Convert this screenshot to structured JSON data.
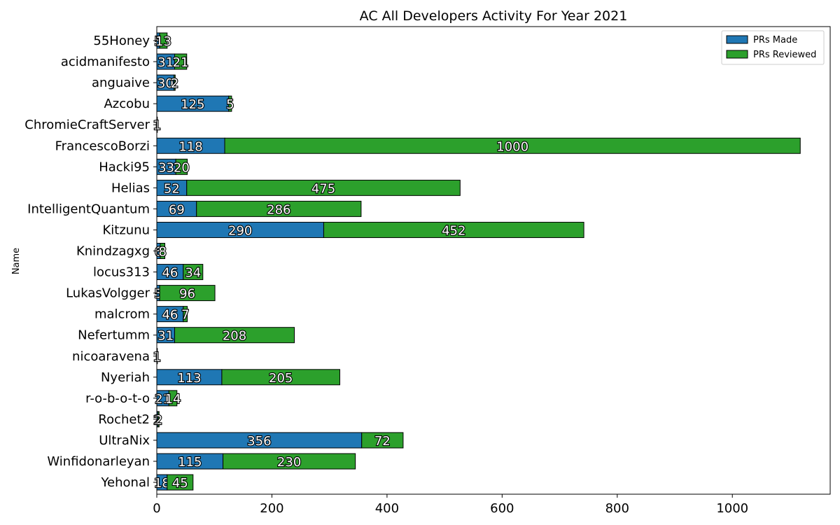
{
  "chart_data": {
    "type": "bar",
    "orientation": "horizontal",
    "stacked": true,
    "title": "AC All Developers Activity For Year 2021",
    "xlabel": "",
    "ylabel": "Name",
    "xlim": [
      0,
      1170
    ],
    "xticks": [
      0,
      200,
      400,
      600,
      800,
      1000
    ],
    "xtick_labels": [
      "0",
      "200",
      "400",
      "600",
      "800",
      "1000"
    ],
    "legend_position": "top-right",
    "grid": false,
    "categories": [
      "55Honey",
      "acidmanifesto",
      "anguaive",
      "Azcobu",
      "ChromieCraftServer",
      "FrancescoBorzi",
      "Hacki95",
      "Helias",
      "IntelligentQuantum",
      "Kitzunu",
      "Knindzagxg",
      "locus313",
      "LukasVolgger",
      "malcrom",
      "Nefertumm",
      "nicoaravena",
      "Nyeriah",
      "r-o-b-o-t-o",
      "Rochet2",
      "UltraNix",
      "Winfidonarleyan",
      "Yehonal"
    ],
    "series": [
      {
        "name": "PRs Made",
        "color": "#1f77b4",
        "values": [
          5,
          31,
          30,
          125,
          0,
          118,
          33,
          52,
          69,
          290,
          6,
          46,
          5,
          46,
          31,
          1,
          113,
          21,
          2,
          356,
          115,
          18
        ]
      },
      {
        "name": "PRs Reviewed",
        "color": "#2ca02c",
        "values": [
          13,
          21,
          2,
          5,
          1,
          1000,
          20,
          475,
          286,
          452,
          8,
          34,
          96,
          7,
          208,
          0,
          205,
          14,
          2,
          72,
          230,
          45
        ]
      }
    ]
  }
}
